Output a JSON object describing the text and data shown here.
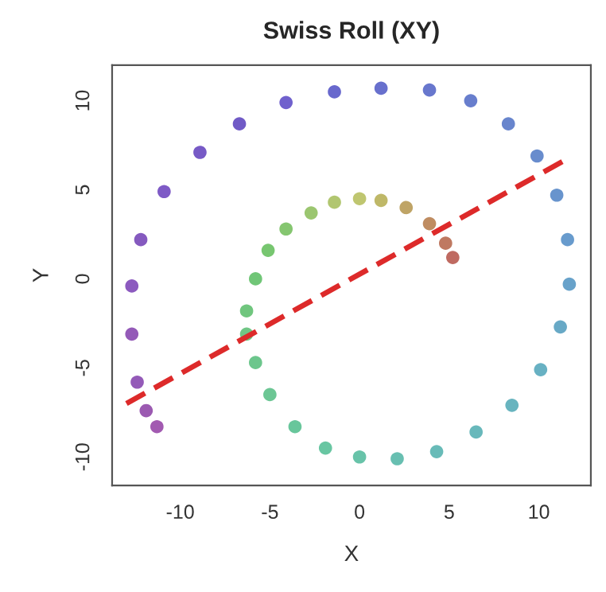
{
  "chart_data": {
    "type": "scatter",
    "title": "Swiss Roll (XY)",
    "xlabel": "X",
    "ylabel": "Y",
    "xlim": [
      -13.8,
      12.9
    ],
    "ylim": [
      -11.6,
      12.0
    ],
    "xticks": [
      -10,
      -5,
      0,
      5,
      10
    ],
    "yticks": [
      -10,
      -5,
      0,
      5,
      10
    ],
    "grid": false,
    "marker": "circle",
    "series": [
      {
        "x": [
          5.2,
          4.8,
          3.9,
          2.6,
          1.2,
          0,
          -1.4,
          -2.7,
          -4.1,
          -5.1,
          -5.8,
          -6.3,
          -6.3,
          -5.8,
          -5,
          -3.6,
          -1.9,
          0,
          2.1,
          4.3,
          6.5,
          8.5,
          10.1,
          11.2,
          11.7,
          11.6,
          11,
          9.9,
          8.3,
          6.2,
          3.9,
          1.2,
          -1.4,
          -4.1,
          -6.7,
          -8.9,
          -10.9,
          -12.2,
          -12.7,
          -12.7,
          -12.4,
          -11.9,
          -11.3
        ],
        "values": [
          1.2,
          2.0,
          3.1,
          4.0,
          4.4,
          4.5,
          4.3,
          3.7,
          2.8,
          1.6,
          0,
          -1.8,
          -3.1,
          -4.7,
          -6.5,
          -8.3,
          -9.5,
          -10,
          -10.1,
          -9.7,
          -8.6,
          -7.1,
          -5.1,
          -2.7,
          -0.3,
          2.2,
          4.7,
          6.9,
          8.7,
          10,
          10.6,
          10.7,
          10.5,
          9.9,
          8.7,
          7.1,
          4.9,
          2.2,
          -0.4,
          -3.1,
          -5.8,
          -7.4,
          -8.3
        ],
        "colors": [
          "#b85a50",
          "#b86a50",
          "#b88050",
          "#b89a55",
          "#b8b058",
          "#b8c060",
          "#a8c060",
          "#90c060",
          "#78c060",
          "#68c060",
          "#60c068",
          "#60c070",
          "#60c078",
          "#5cc080",
          "#5cc088",
          "#58c090",
          "#58c098",
          "#58bca0",
          "#58b8a8",
          "#58b4b0",
          "#58b0b4",
          "#58acb8",
          "#58a8bc",
          "#58a0c0",
          "#5898c4",
          "#5890c8",
          "#5888c8",
          "#5880c8",
          "#5878c8",
          "#5870c8",
          "#5868c8",
          "#5860c8",
          "#5858c8",
          "#6050c8",
          "#6048c0",
          "#6848c0",
          "#7048c0",
          "#7848b8",
          "#8048b8",
          "#8848b0",
          "#8848b0",
          "#9048a8",
          "#9848a8"
        ]
      },
      {
        "type": "line",
        "x": [
          -13.0,
          11.7
        ],
        "values": [
          -7.0,
          6.8
        ],
        "color": "#dd2a2a",
        "line_style": "dashed",
        "marker": "none"
      }
    ]
  }
}
